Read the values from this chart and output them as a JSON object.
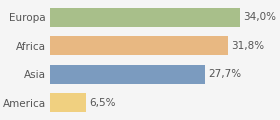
{
  "categories": [
    "America",
    "Asia",
    "Africa",
    "Europa"
  ],
  "values": [
    6.5,
    27.7,
    31.8,
    34.0
  ],
  "labels": [
    "6,5%",
    "27,7%",
    "31,8%",
    "34,0%"
  ],
  "bar_colors": [
    "#f0d080",
    "#7b9bbf",
    "#e8b882",
    "#a8bf8a"
  ],
  "background_color": "#f5f5f5",
  "xlim": [
    0,
    40
  ],
  "label_fontsize": 7.5,
  "tick_fontsize": 7.5
}
